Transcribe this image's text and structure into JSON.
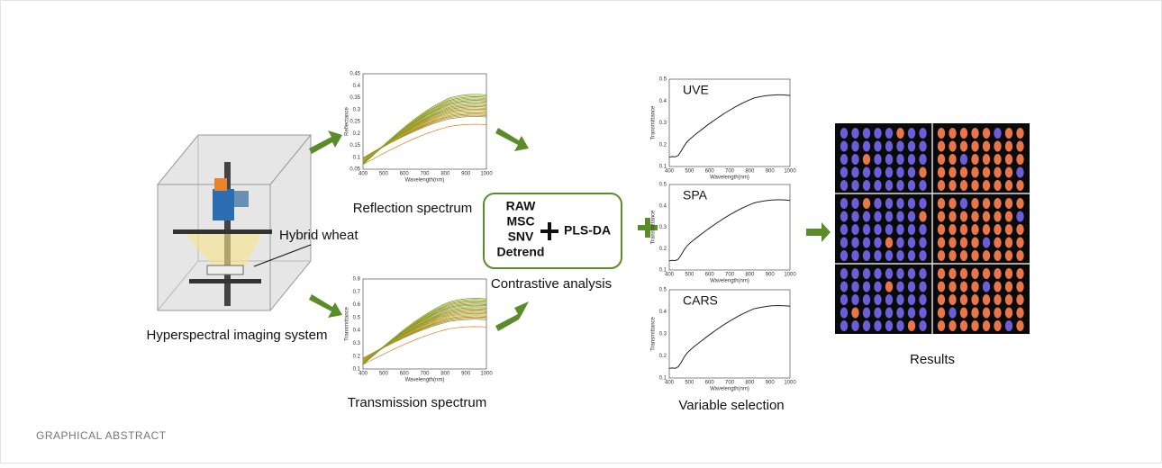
{
  "figure": {
    "caption": "GRAPHICAL ABSTRACT",
    "system": {
      "label": "Hyperspectral imaging system",
      "sample_label": "Hybrid wheat"
    },
    "spectra": [
      {
        "label": "Reflection spectrum",
        "ylabel": "Reflectance",
        "xlabel": "Wavelength(nm)",
        "xticks": [
          "400",
          "500",
          "600",
          "700",
          "800",
          "900",
          "1000"
        ],
        "yticks": [
          "0.05",
          "0.1",
          "0.15",
          "0.2",
          "0.25",
          "0.3",
          "0.35",
          "0.4",
          "0.45"
        ]
      },
      {
        "label": "Transmission spectrum",
        "ylabel": "Transmittance",
        "xlabel": "Wavelength(nm)",
        "xticks": [
          "400",
          "500",
          "600",
          "700",
          "800",
          "900",
          "1000"
        ],
        "yticks": [
          "0.1",
          "0.2",
          "0.3",
          "0.4",
          "0.5",
          "0.6",
          "0.7",
          "0.8"
        ]
      }
    ],
    "analysis": {
      "methods": [
        "RAW",
        "MSC",
        "SNV",
        "Detrend"
      ],
      "model": "PLS-DA",
      "label": "Contrastive analysis"
    },
    "selection": {
      "label": "Variable selection",
      "panels": [
        {
          "name": "UVE",
          "ylabel": "Transmittance",
          "xlabel": "Wavelength(nm)",
          "xticks": [
            "400",
            "500",
            "600",
            "700",
            "800",
            "900",
            "1000"
          ],
          "yticks": [
            "0.1",
            "0.2",
            "0.3",
            "0.4",
            "0.5"
          ]
        },
        {
          "name": "SPA",
          "ylabel": "Transmittance",
          "xlabel": "Wavelength(nm)",
          "xticks": [
            "400",
            "500",
            "600",
            "700",
            "800",
            "900",
            "1000"
          ],
          "yticks": [
            "0.1",
            "0.2",
            "0.3",
            "0.4",
            "0.5"
          ]
        },
        {
          "name": "CARS",
          "ylabel": "Transmittance",
          "xlabel": "Wavelength(nm)",
          "xticks": [
            "400",
            "500",
            "600",
            "700",
            "800",
            "900",
            "1000"
          ],
          "yticks": [
            "0.1",
            "0.2",
            "0.3",
            "0.4",
            "0.5"
          ]
        }
      ]
    },
    "results": {
      "label": "Results"
    }
  }
}
